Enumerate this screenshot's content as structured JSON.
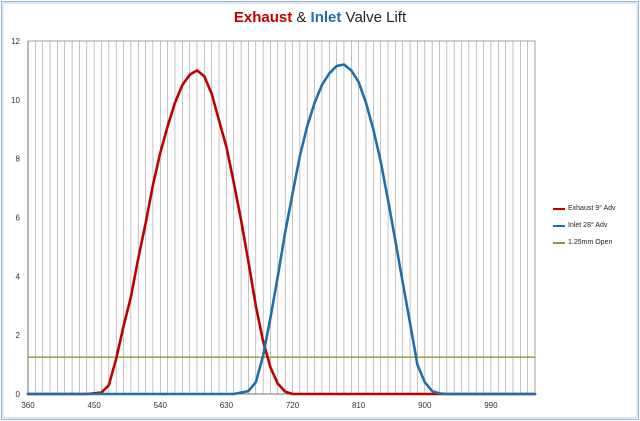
{
  "chart_data": {
    "type": "line",
    "title_parts": [
      {
        "text": "Exhaust",
        "bold": true,
        "color": "#c00000"
      },
      {
        "text": " & ",
        "bold": false,
        "color": "#222222"
      },
      {
        "text": "Inlet",
        "bold": true,
        "color": "#1f6fa8"
      },
      {
        "text": " Valve Lift",
        "bold": false,
        "color": "#222222"
      }
    ],
    "xlim": [
      360,
      1050
    ],
    "ylim": [
      0,
      12
    ],
    "x_ticks": [
      "360",
      "450",
      "540",
      "630",
      "720",
      "810",
      "900",
      "990"
    ],
    "x_tick_values": [
      360,
      450,
      540,
      630,
      720,
      810,
      900,
      990
    ],
    "y_ticks": [
      "0",
      "2",
      "4",
      "6",
      "8",
      "10",
      "12"
    ],
    "y_tick_values": [
      0,
      2,
      4,
      6,
      8,
      10,
      12
    ],
    "grid_x_step": 10,
    "legend_position": "right",
    "series": [
      {
        "name": "Exhaust 9° Adv",
        "color": "#c00000",
        "x": [
          360,
          440,
          460,
          470,
          480,
          490,
          500,
          510,
          520,
          530,
          540,
          550,
          560,
          570,
          580,
          590,
          600,
          610,
          620,
          630,
          640,
          650,
          660,
          670,
          680,
          690,
          700,
          710,
          720,
          730,
          740,
          1050
        ],
        "y": [
          0,
          0,
          0.05,
          0.3,
          1.2,
          2.3,
          3.3,
          4.6,
          5.8,
          7.1,
          8.2,
          9.1,
          9.9,
          10.5,
          10.85,
          11.0,
          10.8,
          10.2,
          9.3,
          8.4,
          7.2,
          5.9,
          4.5,
          3.0,
          1.8,
          0.9,
          0.35,
          0.08,
          0,
          0,
          0,
          0
        ]
      },
      {
        "name": "Inlet 28° Adv",
        "color": "#1f6fa8",
        "x": [
          360,
          640,
          660,
          670,
          680,
          690,
          700,
          710,
          720,
          730,
          740,
          750,
          760,
          770,
          780,
          790,
          800,
          810,
          820,
          830,
          840,
          850,
          860,
          870,
          880,
          890,
          900,
          910,
          920,
          930,
          940,
          1050
        ],
        "y": [
          0,
          0,
          0.1,
          0.4,
          1.3,
          2.6,
          4.0,
          5.5,
          6.8,
          8.1,
          9.1,
          9.9,
          10.5,
          10.9,
          11.15,
          11.2,
          11.0,
          10.6,
          9.9,
          9.0,
          7.9,
          6.6,
          5.2,
          3.8,
          2.4,
          1.0,
          0.4,
          0.1,
          0.02,
          0,
          0,
          0
        ]
      },
      {
        "name": "1.25mm Open",
        "color": "#8c9a2e",
        "x": [
          360,
          1050
        ],
        "y": [
          1.25,
          1.25
        ]
      }
    ]
  }
}
